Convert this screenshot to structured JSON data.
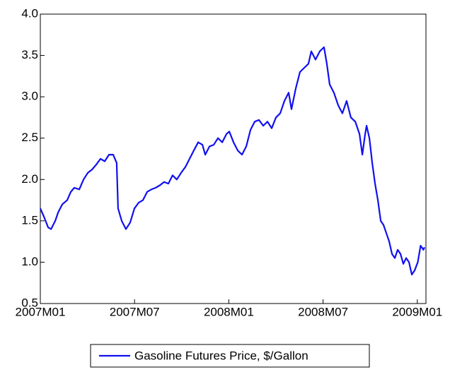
{
  "chart_data": {
    "type": "line",
    "x": [
      0,
      0.23,
      0.5,
      0.68,
      0.95,
      1.13,
      1.4,
      1.71,
      1.94,
      2.16,
      2.48,
      2.75,
      3.02,
      3.29,
      3.56,
      3.83,
      4.1,
      4.37,
      4.64,
      4.86,
      4.95,
      5.18,
      5.45,
      5.72,
      5.99,
      6.26,
      6.53,
      6.8,
      7.07,
      7.34,
      7.61,
      7.88,
      8.15,
      8.42,
      8.69,
      8.96,
      9.23,
      9.5,
      9.77,
      10.05,
      10.32,
      10.5,
      10.77,
      11.04,
      11.31,
      11.58,
      11.85,
      12.03,
      12.3,
      12.57,
      12.84,
      13.11,
      13.38,
      13.65,
      13.92,
      14.19,
      14.46,
      14.73,
      15,
      15.27,
      15.54,
      15.81,
      15.99,
      16.26,
      16.53,
      16.8,
      17.07,
      17.25,
      17.52,
      17.79,
      18.06,
      18.24,
      18.42,
      18.69,
      18.96,
      19.23,
      19.5,
      19.77,
      20.05,
      20.32,
      20.5,
      20.68,
      20.77,
      20.95,
      21.13,
      21.31,
      21.49,
      21.67,
      21.85,
      22.03,
      22.21,
      22.39,
      22.57,
      22.75,
      22.93,
      23.11,
      23.29,
      23.47,
      23.65,
      23.83,
      24.03,
      24.21,
      24.39,
      24.46
    ],
    "series": [
      {
        "name": "Gasoline Futures Price, $/Gallon",
        "color": "#1010f0",
        "values": [
          1.65,
          1.55,
          1.42,
          1.4,
          1.5,
          1.6,
          1.7,
          1.75,
          1.85,
          1.9,
          1.88,
          2.0,
          2.08,
          2.12,
          2.18,
          2.25,
          2.22,
          2.3,
          2.3,
          2.2,
          1.65,
          1.5,
          1.4,
          1.48,
          1.65,
          1.72,
          1.75,
          1.85,
          1.88,
          1.9,
          1.93,
          1.97,
          1.95,
          2.05,
          2.0,
          2.08,
          2.15,
          2.25,
          2.35,
          2.45,
          2.42,
          2.3,
          2.4,
          2.42,
          2.5,
          2.45,
          2.55,
          2.58,
          2.45,
          2.35,
          2.3,
          2.4,
          2.6,
          2.7,
          2.72,
          2.65,
          2.7,
          2.62,
          2.75,
          2.8,
          2.95,
          3.05,
          2.85,
          3.1,
          3.3,
          3.35,
          3.4,
          3.55,
          3.45,
          3.55,
          3.6,
          3.4,
          3.15,
          3.05,
          2.9,
          2.8,
          2.95,
          2.75,
          2.7,
          2.55,
          2.3,
          2.55,
          2.65,
          2.5,
          2.2,
          1.95,
          1.75,
          1.5,
          1.45,
          1.35,
          1.25,
          1.1,
          1.05,
          1.15,
          1.1,
          0.98,
          1.05,
          1.0,
          0.85,
          0.9,
          1.0,
          1.2,
          1.15,
          1.18
        ]
      }
    ],
    "xlim": [
      0,
      24.55
    ],
    "xticks": [
      {
        "value": 0,
        "label": "2007M01"
      },
      {
        "value": 6,
        "label": "2007M07"
      },
      {
        "value": 12,
        "label": "2008M01"
      },
      {
        "value": 18,
        "label": "2008M07"
      },
      {
        "value": 24,
        "label": "2009M01"
      }
    ],
    "ylim": [
      0.5,
      4.0
    ],
    "yticks": [
      0.5,
      {
        "value": 1,
        "label": "1.0"
      },
      1.5,
      {
        "value": 2,
        "label": "2.0"
      },
      2.5,
      {
        "value": 3,
        "label": "3.0"
      },
      3.5,
      {
        "value": 4,
        "label": "4.0"
      }
    ],
    "legend": "bottom"
  }
}
